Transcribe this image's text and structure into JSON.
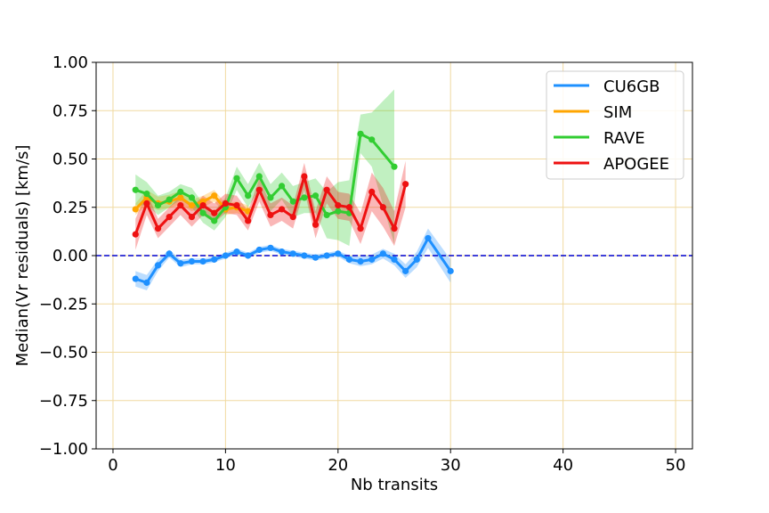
{
  "chart_data": {
    "type": "line",
    "xlabel": "Nb transits",
    "ylabel": "Median(Vr residuals) [km/s]",
    "xlim": [
      -1.5,
      51.5
    ],
    "ylim": [
      -1.0,
      1.0
    ],
    "xticks": [
      0,
      10,
      20,
      30,
      40,
      50
    ],
    "xtick_labels": [
      "0",
      "10",
      "20",
      "30",
      "40",
      "50"
    ],
    "yticks": [
      1.0,
      0.75,
      0.5,
      0.25,
      0.0,
      -0.25,
      -0.5,
      -0.75,
      -1.0
    ],
    "ytick_labels": [
      "1.00",
      "0.75",
      "0.50",
      "0.25",
      "0.00",
      "−0.25",
      "−0.50",
      "−0.75",
      "−1.00"
    ],
    "grid": true,
    "grid_color": "#f0d9a0",
    "legend_position": "top-right",
    "reference_line": {
      "y": 0.0,
      "style": "dashed",
      "color": "#0000cc"
    },
    "series": [
      {
        "name": "CU6GB",
        "color": "#1e90ff",
        "x": [
          2,
          3,
          4,
          5,
          6,
          7,
          8,
          9,
          10,
          11,
          12,
          13,
          14,
          15,
          16,
          17,
          18,
          19,
          20,
          21,
          22,
          23,
          24,
          25,
          26,
          27,
          28,
          30
        ],
        "y": [
          -0.12,
          -0.14,
          -0.05,
          0.01,
          -0.04,
          -0.03,
          -0.03,
          -0.02,
          0.0,
          0.02,
          0.0,
          0.03,
          0.04,
          0.02,
          0.01,
          0.0,
          -0.01,
          0.0,
          0.01,
          -0.02,
          -0.03,
          -0.02,
          0.01,
          -0.02,
          -0.08,
          -0.02,
          0.09,
          -0.08
        ],
        "band": [
          0.04,
          0.04,
          0.03,
          0.02,
          0.02,
          0.015,
          0.015,
          0.015,
          0.015,
          0.015,
          0.015,
          0.015,
          0.015,
          0.015,
          0.015,
          0.015,
          0.015,
          0.015,
          0.015,
          0.02,
          0.025,
          0.025,
          0.025,
          0.03,
          0.035,
          0.04,
          0.05,
          0.06
        ]
      },
      {
        "name": "SIM",
        "color": "#ffa500",
        "x": [
          2,
          3,
          4,
          5,
          6,
          7,
          8,
          9,
          10,
          11,
          12
        ],
        "y": [
          0.24,
          0.3,
          0.27,
          0.28,
          0.3,
          0.26,
          0.28,
          0.31,
          0.24,
          0.25,
          0.23
        ],
        "band": [
          0.03,
          0.04,
          0.035,
          0.035,
          0.035,
          0.03,
          0.03,
          0.03,
          0.03,
          0.03,
          0.03
        ]
      },
      {
        "name": "RAVE",
        "color": "#32cd32",
        "x": [
          2,
          3,
          4,
          5,
          6,
          7,
          8,
          9,
          10,
          11,
          12,
          13,
          14,
          15,
          16,
          17,
          18,
          19,
          20,
          21,
          22,
          23,
          25
        ],
        "y": [
          0.34,
          0.32,
          0.26,
          0.29,
          0.33,
          0.3,
          0.22,
          0.18,
          0.25,
          0.4,
          0.31,
          0.41,
          0.3,
          0.36,
          0.28,
          0.3,
          0.31,
          0.21,
          0.23,
          0.22,
          0.63,
          0.6,
          0.46
        ],
        "band": [
          0.08,
          0.06,
          0.05,
          0.04,
          0.04,
          0.05,
          0.05,
          0.05,
          0.05,
          0.06,
          0.06,
          0.07,
          0.07,
          0.07,
          0.08,
          0.08,
          0.09,
          0.12,
          0.15,
          0.17,
          0.1,
          0.14,
          0.4
        ]
      },
      {
        "name": "APOGEE",
        "color": "#ee1111",
        "x": [
          2,
          3,
          4,
          5,
          6,
          7,
          8,
          9,
          10,
          11,
          12,
          13,
          14,
          15,
          16,
          17,
          18,
          19,
          20,
          21,
          22,
          23,
          24,
          25,
          26
        ],
        "y": [
          0.11,
          0.27,
          0.14,
          0.2,
          0.26,
          0.2,
          0.26,
          0.22,
          0.27,
          0.26,
          0.18,
          0.34,
          0.21,
          0.24,
          0.2,
          0.41,
          0.16,
          0.34,
          0.26,
          0.25,
          0.14,
          0.33,
          0.25,
          0.14,
          0.37
        ],
        "band": [
          0.08,
          0.06,
          0.05,
          0.05,
          0.05,
          0.05,
          0.05,
          0.05,
          0.05,
          0.05,
          0.05,
          0.06,
          0.06,
          0.06,
          0.06,
          0.07,
          0.07,
          0.07,
          0.07,
          0.07,
          0.08,
          0.1,
          0.1,
          0.09,
          0.12
        ]
      }
    ]
  }
}
